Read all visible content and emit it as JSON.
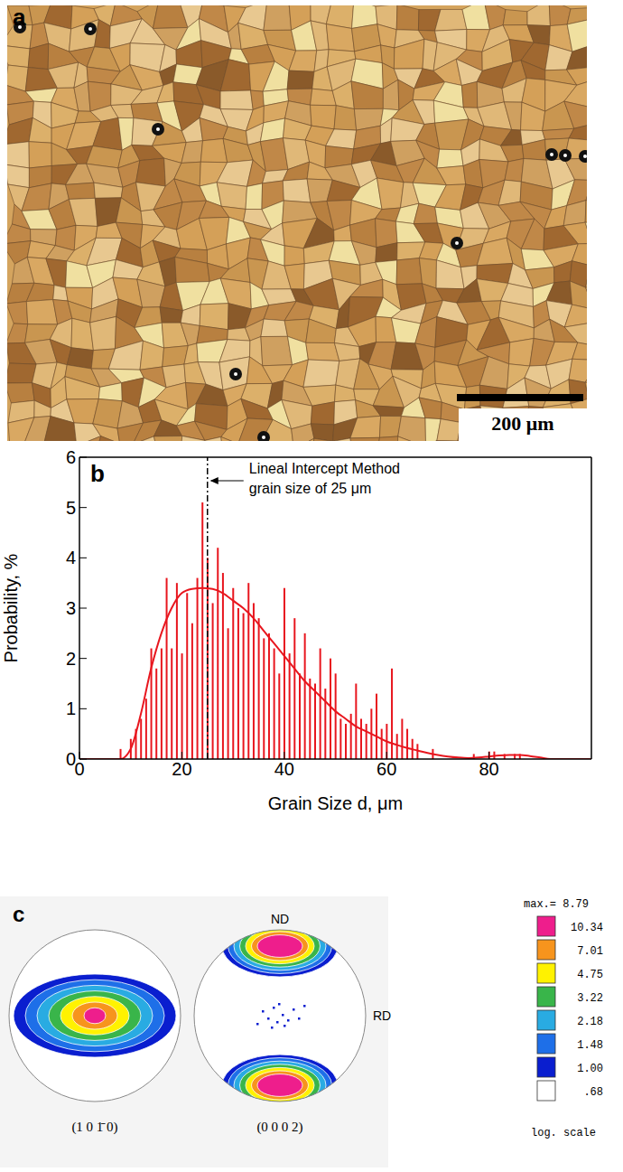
{
  "panel_a": {
    "label": "a",
    "scale_bar": "200 μm"
  },
  "chart_data": {
    "type": "bar",
    "label": "b",
    "xlabel": "Grain Size d, μm",
    "ylabel": "Probability, %",
    "color": "#e8161e",
    "x": [
      8,
      10,
      11,
      12,
      13,
      14,
      15,
      16,
      17,
      18,
      19,
      20,
      21,
      22,
      23,
      24,
      25,
      26,
      27,
      28,
      29,
      30,
      31,
      32,
      33,
      34,
      35,
      36,
      37,
      38,
      39,
      40,
      41,
      42,
      43,
      44,
      45,
      46,
      47,
      48,
      49,
      50,
      51,
      52,
      53,
      54,
      55,
      56,
      57,
      58,
      59,
      60,
      61,
      62,
      63,
      64,
      65,
      66,
      69,
      77,
      80,
      81,
      83,
      85,
      86
    ],
    "values": [
      0.2,
      0.4,
      0.6,
      0.8,
      1.2,
      2.2,
      1.8,
      2.2,
      3.6,
      2.2,
      3.5,
      2.1,
      3.3,
      2.7,
      3.6,
      5.1,
      4.0,
      3.1,
      4.2,
      3.7,
      2.6,
      3.4,
      3.0,
      2.9,
      3.5,
      3.1,
      2.8,
      2.4,
      2.5,
      2.2,
      1.7,
      3.4,
      2.1,
      2.8,
      1.7,
      2.5,
      1.6,
      1.5,
      2.2,
      1.4,
      2.0,
      1.7,
      0.8,
      0.7,
      0.9,
      1.5,
      0.8,
      0.7,
      1.0,
      1.3,
      0.6,
      0.7,
      1.8,
      0.5,
      0.8,
      0.6,
      0.4,
      0.3,
      0.2,
      0.1,
      0.15,
      0.15,
      0.1,
      0.1,
      0.1
    ],
    "fit": {
      "type": "line",
      "color": "#e8161e",
      "x": [
        0,
        8,
        10,
        12,
        14,
        16,
        18,
        20,
        22,
        24,
        26,
        28,
        30,
        32,
        34,
        36,
        38,
        40,
        42,
        44,
        46,
        48,
        50,
        52,
        54,
        56,
        58,
        60,
        62,
        64,
        66,
        68,
        70,
        72,
        74,
        76,
        78,
        80,
        82,
        84,
        86,
        88,
        90,
        92,
        100
      ],
      "values": [
        0,
        0,
        0.2,
        0.9,
        1.8,
        2.5,
        3.0,
        3.3,
        3.38,
        3.4,
        3.38,
        3.3,
        3.15,
        3.0,
        2.8,
        2.55,
        2.3,
        2.05,
        1.8,
        1.55,
        1.35,
        1.15,
        0.95,
        0.8,
        0.65,
        0.55,
        0.45,
        0.35,
        0.28,
        0.22,
        0.17,
        0.12,
        0.08,
        0.05,
        0.03,
        0.02,
        0.03,
        0.05,
        0.07,
        0.08,
        0.08,
        0.06,
        0.03,
        0,
        0
      ]
    },
    "xlim": [
      0,
      100
    ],
    "xticks": [
      0,
      20,
      40,
      60,
      80
    ],
    "ylim": [
      0,
      6
    ],
    "yticks": [
      0,
      1,
      2,
      3,
      4,
      5,
      6
    ],
    "annotation": {
      "x": 25,
      "text": [
        "Lineal Intercept Method",
        "grain size of 25 μm"
      ],
      "line_style": "dashdot"
    }
  },
  "panel_c": {
    "label": "c",
    "pole_figures": [
      {
        "label": "(1 0 1̄ 0)"
      },
      {
        "label": "(0 0 0 2)",
        "directions": [
          "ND",
          "RD"
        ]
      }
    ],
    "color_bar": {
      "title": "max.= 8.79",
      "levels": [
        {
          "value": 10.34,
          "color": "#ee1e8c"
        },
        {
          "value": 7.01,
          "color": "#f7941d"
        },
        {
          "value": 4.75,
          "color": "#fff200"
        },
        {
          "value": 3.22,
          "color": "#39b54a"
        },
        {
          "value": 2.18,
          "color": "#29abe2"
        },
        {
          "value": 1.48,
          "color": "#1e6fe8"
        },
        {
          "value": 1.0,
          "label": "1.00",
          "color": "#0a1ecf"
        },
        {
          "value": 0.68,
          "label": ".68",
          "color": "#ffffff"
        }
      ],
      "scale_label": "log. scale"
    }
  }
}
